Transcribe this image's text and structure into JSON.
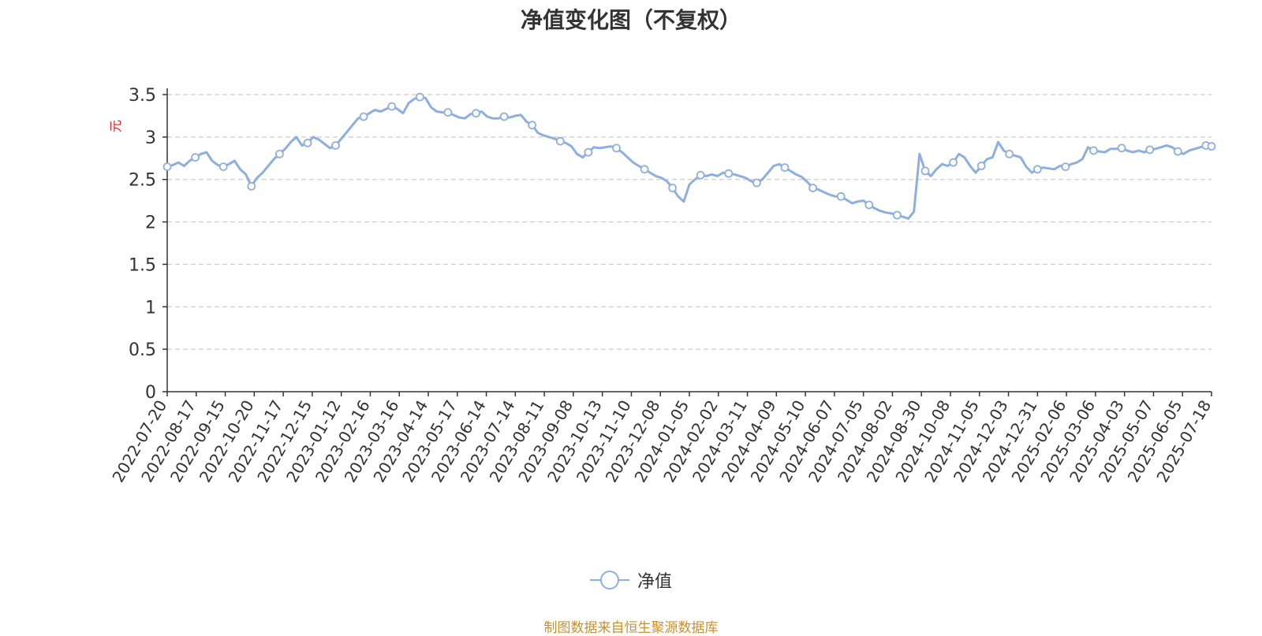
{
  "chart_data": {
    "type": "line",
    "title": "净值变化图（不复权）",
    "ylabel": "元",
    "xlabel": "",
    "ylim": [
      0,
      3.5
    ],
    "y_ticks": [
      "0",
      "0.5",
      "1",
      "1.5",
      "2",
      "2.5",
      "3",
      "3.5"
    ],
    "grid": true,
    "legend_position": "bottom",
    "x_tick_labels": [
      "2022-07-20",
      "2022-08-17",
      "2022-09-15",
      "2022-10-20",
      "2022-11-17",
      "2022-12-15",
      "2023-01-12",
      "2023-02-16",
      "2023-03-16",
      "2023-04-14",
      "2023-05-17",
      "2023-06-14",
      "2023-07-14",
      "2023-08-11",
      "2023-09-08",
      "2023-10-13",
      "2023-11-10",
      "2023-12-08",
      "2024-01-05",
      "2024-02-02",
      "2024-03-11",
      "2024-04-09",
      "2024-05-10",
      "2024-06-07",
      "2024-07-05",
      "2024-08-02",
      "2024-08-30",
      "2024-10-08",
      "2024-11-05",
      "2024-12-03",
      "2024-12-31",
      "2025-02-06",
      "2025-03-06",
      "2025-04-03",
      "2025-05-07",
      "2025-06-05",
      "2025-07-18"
    ],
    "series": [
      {
        "name": "净值",
        "color": "#8eafdc",
        "values": [
          2.65,
          2.67,
          2.7,
          2.66,
          2.72,
          2.76,
          2.8,
          2.82,
          2.72,
          2.67,
          2.65,
          2.68,
          2.72,
          2.62,
          2.56,
          2.42,
          2.52,
          2.58,
          2.66,
          2.74,
          2.8,
          2.86,
          2.94,
          3.0,
          2.9,
          2.93,
          3.0,
          2.97,
          2.92,
          2.87,
          2.9,
          2.98,
          3.06,
          3.14,
          3.22,
          3.24,
          3.28,
          3.32,
          3.3,
          3.33,
          3.36,
          3.33,
          3.28,
          3.4,
          3.45,
          3.47,
          3.46,
          3.35,
          3.3,
          3.29,
          3.29,
          3.26,
          3.23,
          3.22,
          3.27,
          3.28,
          3.3,
          3.24,
          3.22,
          3.22,
          3.24,
          3.23,
          3.25,
          3.26,
          3.18,
          3.14,
          3.05,
          3.02,
          3.0,
          2.98,
          2.95,
          2.93,
          2.89,
          2.8,
          2.76,
          2.82,
          2.88,
          2.87,
          2.88,
          2.89,
          2.87,
          2.82,
          2.76,
          2.7,
          2.66,
          2.62,
          2.58,
          2.54,
          2.52,
          2.48,
          2.4,
          2.3,
          2.24,
          2.44,
          2.5,
          2.55,
          2.54,
          2.56,
          2.54,
          2.58,
          2.57,
          2.56,
          2.54,
          2.52,
          2.48,
          2.46,
          2.5,
          2.58,
          2.66,
          2.68,
          2.64,
          2.6,
          2.56,
          2.53,
          2.47,
          2.4,
          2.38,
          2.35,
          2.32,
          2.3,
          2.3,
          2.26,
          2.22,
          2.24,
          2.25,
          2.2,
          2.16,
          2.13,
          2.11,
          2.1,
          2.08,
          2.06,
          2.04,
          2.12,
          2.8,
          2.6,
          2.54,
          2.62,
          2.68,
          2.66,
          2.7,
          2.8,
          2.76,
          2.66,
          2.58,
          2.66,
          2.74,
          2.76,
          2.94,
          2.84,
          2.8,
          2.78,
          2.76,
          2.65,
          2.58,
          2.62,
          2.64,
          2.63,
          2.62,
          2.66,
          2.65,
          2.68,
          2.7,
          2.74,
          2.88,
          2.84,
          2.83,
          2.82,
          2.86,
          2.86,
          2.87,
          2.84,
          2.82,
          2.84,
          2.82,
          2.85,
          2.86,
          2.88,
          2.9,
          2.88,
          2.83,
          2.8,
          2.84,
          2.86,
          2.88,
          2.9,
          2.89
        ]
      }
    ]
  },
  "source_note": "制图数据来自恒生聚源数据库"
}
